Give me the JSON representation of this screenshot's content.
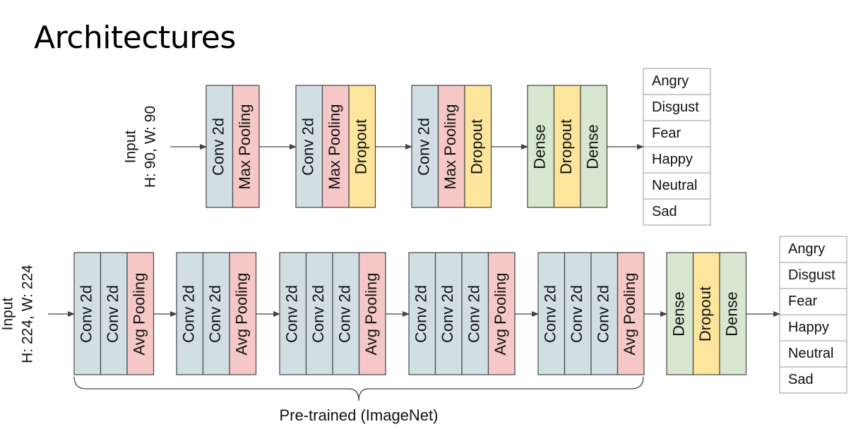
{
  "title": "Architectures",
  "colors": {
    "conv": "#d1dfe4",
    "pool": "#f5c8c7",
    "dropout": "#fde69c",
    "dense": "#d8e8d0"
  },
  "top_model": {
    "input_lines": [
      "Input",
      "H: 90, W: 90"
    ],
    "groups": [
      {
        "layers": [
          {
            "label": "Conv 2d",
            "kind": "conv"
          },
          {
            "label": "Max Pooling",
            "kind": "pool"
          }
        ]
      },
      {
        "layers": [
          {
            "label": "Conv 2d",
            "kind": "conv"
          },
          {
            "label": "Max Pooling",
            "kind": "pool"
          },
          {
            "label": "Dropout",
            "kind": "dropout"
          }
        ]
      },
      {
        "layers": [
          {
            "label": "Conv 2d",
            "kind": "conv"
          },
          {
            "label": "Max Pooling",
            "kind": "pool"
          },
          {
            "label": "Dropout",
            "kind": "dropout"
          }
        ]
      },
      {
        "layers": [
          {
            "label": "Dense",
            "kind": "dense"
          },
          {
            "label": "Dropout",
            "kind": "dropout"
          },
          {
            "label": "Dense",
            "kind": "dense"
          }
        ]
      }
    ],
    "outputs": [
      "Angry",
      "Disgust",
      "Fear",
      "Happy",
      "Neutral",
      "Sad"
    ]
  },
  "bottom_model": {
    "input_lines": [
      "Input",
      "H: 224, W: 224"
    ],
    "groups": [
      {
        "layers": [
          {
            "label": "Conv 2d",
            "kind": "conv"
          },
          {
            "label": "Conv 2d",
            "kind": "conv"
          },
          {
            "label": "Avg Pooling",
            "kind": "pool"
          }
        ]
      },
      {
        "layers": [
          {
            "label": "Conv 2d",
            "kind": "conv"
          },
          {
            "label": "Conv 2d",
            "kind": "conv"
          },
          {
            "label": "Avg Pooling",
            "kind": "pool"
          }
        ]
      },
      {
        "layers": [
          {
            "label": "Conv 2d",
            "kind": "conv"
          },
          {
            "label": "Conv 2d",
            "kind": "conv"
          },
          {
            "label": "Conv 2d",
            "kind": "conv"
          },
          {
            "label": "Avg Pooling",
            "kind": "pool"
          }
        ]
      },
      {
        "layers": [
          {
            "label": "Conv 2d",
            "kind": "conv"
          },
          {
            "label": "Conv 2d",
            "kind": "conv"
          },
          {
            "label": "Conv 2d",
            "kind": "conv"
          },
          {
            "label": "Avg Pooling",
            "kind": "pool"
          }
        ]
      },
      {
        "layers": [
          {
            "label": "Conv 2d",
            "kind": "conv"
          },
          {
            "label": "Conv 2d",
            "kind": "conv"
          },
          {
            "label": "Conv 2d",
            "kind": "conv"
          },
          {
            "label": "Avg Pooling",
            "kind": "pool"
          }
        ]
      },
      {
        "layers": [
          {
            "label": "Dense",
            "kind": "dense"
          },
          {
            "label": "Dropout",
            "kind": "dropout"
          },
          {
            "label": "Dense",
            "kind": "dense"
          }
        ]
      }
    ],
    "outputs": [
      "Angry",
      "Disgust",
      "Fear",
      "Happy",
      "Neutral",
      "Sad"
    ],
    "pretrained_label": "Pre-trained (ImageNet)"
  }
}
